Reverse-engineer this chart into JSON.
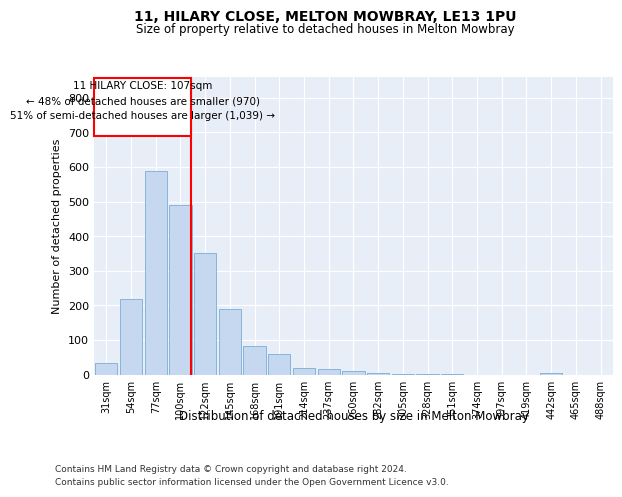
{
  "title1": "11, HILARY CLOSE, MELTON MOWBRAY, LE13 1PU",
  "title2": "Size of property relative to detached houses in Melton Mowbray",
  "xlabel": "Distribution of detached houses by size in Melton Mowbray",
  "ylabel": "Number of detached properties",
  "categories": [
    "31sqm",
    "54sqm",
    "77sqm",
    "100sqm",
    "122sqm",
    "145sqm",
    "168sqm",
    "191sqm",
    "214sqm",
    "237sqm",
    "260sqm",
    "282sqm",
    "305sqm",
    "328sqm",
    "351sqm",
    "374sqm",
    "397sqm",
    "419sqm",
    "442sqm",
    "465sqm",
    "488sqm"
  ],
  "values": [
    32,
    218,
    588,
    490,
    350,
    188,
    83,
    58,
    20,
    16,
    10,
    5,
    1,
    1,
    1,
    0,
    0,
    0,
    5,
    0,
    0
  ],
  "bar_color": "#c5d8f0",
  "bar_edge_color": "#7aadd4",
  "property_line_x": 3.43,
  "annotation_line1": "11 HILARY CLOSE: 107sqm",
  "annotation_line2": "← 48% of detached houses are smaller (970)",
  "annotation_line3": "51% of semi-detached houses are larger (1,039) →",
  "footer_line1": "Contains HM Land Registry data © Crown copyright and database right 2024.",
  "footer_line2": "Contains public sector information licensed under the Open Government Licence v3.0.",
  "ylim": [
    0,
    860
  ],
  "yticks": [
    0,
    100,
    200,
    300,
    400,
    500,
    600,
    700,
    800
  ],
  "plot_background": "#e8eef8"
}
